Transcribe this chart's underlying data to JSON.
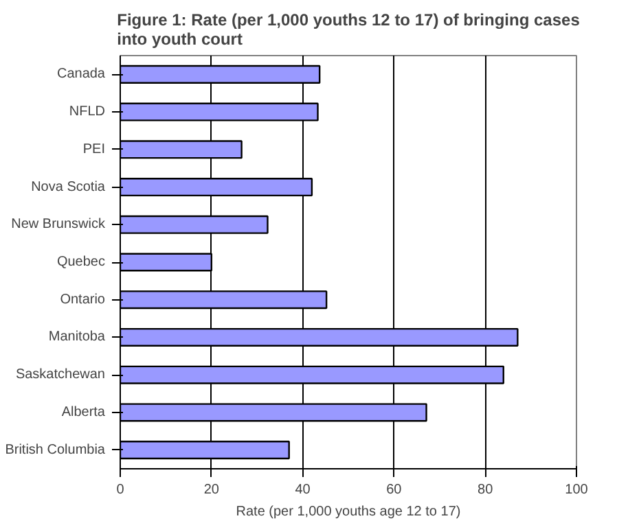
{
  "chart_data": {
    "type": "bar",
    "orientation": "horizontal",
    "title": "Figure 1: Rate (per 1,000 youths 12 to 17) of bringing cases\ninto youth court",
    "xlabel": "Rate (per 1,000 youths age 12 to 17)",
    "categories": [
      "Canada",
      "NFLD",
      "PEI",
      "Nova Scotia",
      "New Brunswick",
      "Quebec",
      "Ontario",
      "Manitoba",
      "Saskatchewan",
      "Alberta",
      "British Columbia"
    ],
    "values": [
      43.7,
      43.3,
      26.6,
      42.0,
      32.3,
      20.0,
      45.2,
      87.1,
      84.0,
      67.1,
      37.0
    ],
    "color": "#9999ff",
    "xlim": [
      0,
      100
    ],
    "xticks": [
      0,
      20,
      40,
      60,
      80,
      100
    ],
    "grid": "x"
  }
}
